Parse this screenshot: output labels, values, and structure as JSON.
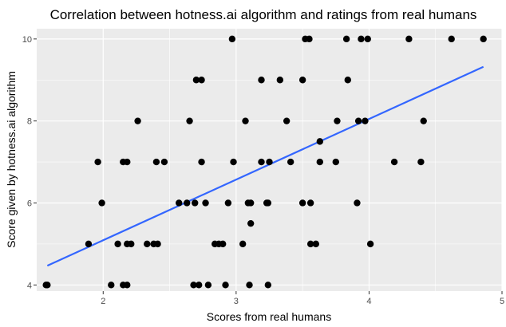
{
  "chart_data": {
    "type": "scatter",
    "title": "Correlation between hotness.ai algorithm and ratings from real humans",
    "xlabel": "Scores from real humans",
    "ylabel": "Score given by hotness.ai algorithm",
    "xlim": [
      1.5,
      5.0
    ],
    "ylim": [
      3.85,
      10.25
    ],
    "x_ticks": [
      2,
      3,
      4,
      5
    ],
    "y_ticks": [
      4,
      6,
      8,
      10
    ],
    "x_tick_labels": [
      "2",
      "3",
      "4",
      "5"
    ],
    "y_tick_labels": [
      "4",
      "6",
      "8",
      "10"
    ],
    "grid": true,
    "legend": "none",
    "colors": {
      "panel_background": "#ebebeb",
      "grid": "#ffffff",
      "points": "#000000",
      "trend_line": "#3366ff"
    },
    "series": [
      {
        "type": "points",
        "x": [
          1.57,
          1.58,
          2.97,
          3.52,
          3.55,
          3.83,
          3.94,
          3.99,
          4.3,
          4.62,
          4.86,
          2.7,
          2.74,
          3.19,
          3.33,
          3.5,
          3.84,
          2.26,
          2.65,
          3.07,
          3.38,
          3.76,
          3.92,
          3.97,
          4.41,
          3.63,
          1.96,
          2.15,
          2.18,
          2.4,
          2.46,
          2.74,
          2.98,
          3.19,
          3.25,
          3.41,
          3.63,
          3.75,
          4.19,
          4.39,
          1.99,
          2.57,
          2.63,
          2.69,
          2.77,
          2.94,
          3.09,
          3.11,
          3.23,
          3.24,
          3.5,
          3.56,
          3.91,
          3.11,
          1.89,
          2.11,
          2.18,
          2.21,
          2.33,
          2.38,
          2.41,
          2.84,
          2.87,
          2.9,
          3.05,
          3.56,
          3.6,
          4.01,
          2.06,
          2.15,
          2.18,
          2.68,
          2.72,
          2.79,
          2.92,
          3.1,
          3.24
        ],
        "y": [
          4,
          4,
          10,
          10,
          10,
          10,
          10,
          10,
          10,
          10,
          10,
          9,
          9,
          9,
          9,
          9,
          9,
          8,
          8,
          8,
          8,
          8,
          8,
          8,
          8,
          7.5,
          7,
          7,
          7,
          7,
          7,
          7,
          7,
          7,
          7,
          7,
          7,
          7,
          7,
          7,
          6,
          6,
          6,
          6,
          6,
          6,
          6,
          6,
          6,
          6,
          6,
          6,
          6,
          5.5,
          5,
          5,
          5,
          5,
          5,
          5,
          5,
          5,
          5,
          5,
          5,
          5,
          5,
          5,
          4,
          4,
          4,
          4,
          4,
          4,
          4,
          4,
          4
        ]
      },
      {
        "type": "linear_trend",
        "x": [
          1.58,
          4.86
        ],
        "y": [
          4.47,
          9.32
        ]
      }
    ]
  }
}
